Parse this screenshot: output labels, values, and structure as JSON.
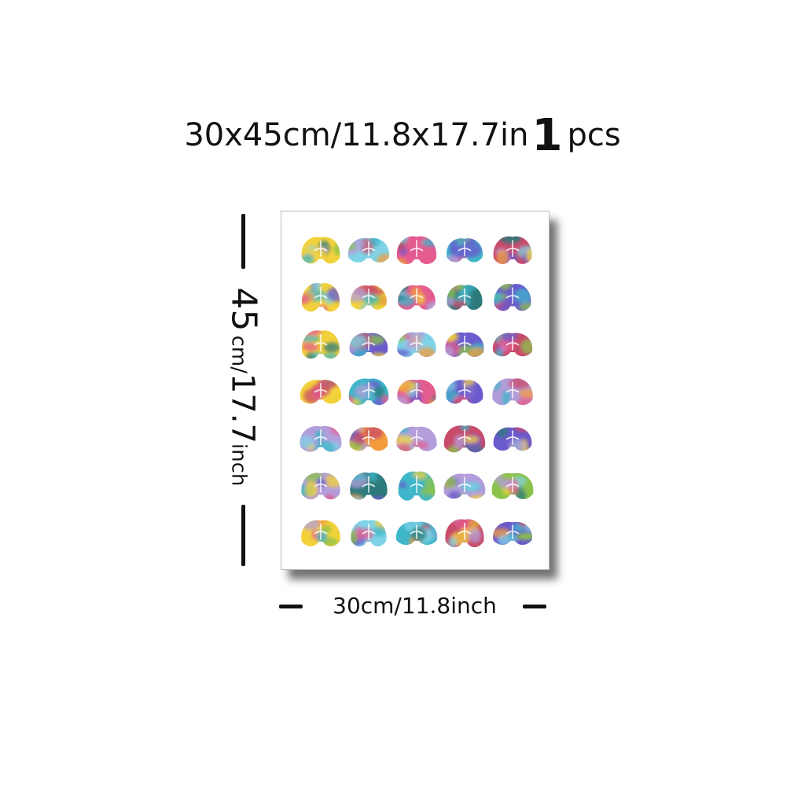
{
  "headline": {
    "size_text": "30x45cm/11.8x17.7in",
    "quantity_number": "1",
    "quantity_unit": "pcs"
  },
  "vertical_dimension": {
    "major": "45",
    "unit": "cm/",
    "value_inch": "17.7",
    "inch_unit": "inch"
  },
  "horizontal_dimension": {
    "label": "30cm/11.8inch"
  },
  "poster": {
    "rows": 7,
    "columns": 5,
    "palette": [
      "#3fb6c9",
      "#f3d13a",
      "#e45b8f",
      "#8bc34a",
      "#6a5acd",
      "#f39c3c",
      "#2c7a7b",
      "#c94b6a",
      "#7fd3e6",
      "#b39ddb"
    ]
  }
}
